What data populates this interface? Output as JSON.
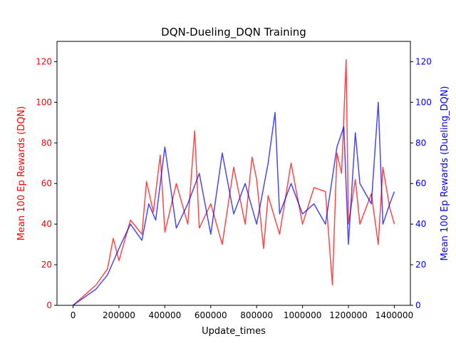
{
  "chart_data": {
    "type": "line",
    "title": "DQN-Dueling_DQN Training",
    "xlabel": "Update_times",
    "ylabel_left": "Mean 100 Ep Rewards (DQN)",
    "ylabel_right": "Mean 100 Ep Rewards (Dueling_DQN)",
    "xlim": [
      -70000,
      1470000
    ],
    "ylim": [
      0,
      130
    ],
    "x_ticks": [
      0,
      200000,
      400000,
      600000,
      800000,
      1000000,
      1200000,
      1400000
    ],
    "x_tick_labels": [
      "0",
      "200000",
      "400000",
      "600000",
      "800000",
      "1000000",
      "1200000",
      "1400000"
    ],
    "y_ticks": [
      0,
      20,
      40,
      60,
      80,
      100,
      120
    ],
    "y_tick_labels": [
      "0",
      "20",
      "40",
      "60",
      "80",
      "100",
      "120"
    ],
    "grid": false,
    "series": [
      {
        "axis": "left",
        "color": "#ff0000",
        "x": [
          0,
          50000,
          100000,
          150000,
          175000,
          200000,
          250000,
          300000,
          320000,
          350000,
          380000,
          400000,
          450000,
          500000,
          530000,
          550000,
          600000,
          650000,
          700000,
          750000,
          780000,
          800000,
          830000,
          850000,
          900000,
          950000,
          1000000,
          1050000,
          1100000,
          1130000,
          1150000,
          1170000,
          1190000,
          1200000,
          1230000,
          1250000,
          1300000,
          1330000,
          1350000,
          1380000,
          1400000
        ],
        "values": [
          0,
          5,
          10,
          18,
          33,
          22,
          42,
          35,
          61,
          46,
          74,
          36,
          60,
          40,
          86,
          38,
          50,
          30,
          68,
          40,
          73,
          62,
          28,
          54,
          35,
          70,
          40,
          58,
          56,
          10,
          75,
          65,
          121,
          40,
          62,
          40,
          55,
          30,
          68,
          48,
          40
        ]
      },
      {
        "axis": "right",
        "color": "#0000ff",
        "x": [
          0,
          50000,
          100000,
          150000,
          200000,
          250000,
          300000,
          330000,
          360000,
          400000,
          450000,
          500000,
          550000,
          600000,
          650000,
          700000,
          750000,
          800000,
          850000,
          880000,
          900000,
          950000,
          1000000,
          1050000,
          1100000,
          1150000,
          1180000,
          1200000,
          1230000,
          1250000,
          1300000,
          1330000,
          1350000,
          1380000,
          1400000
        ],
        "values": [
          0,
          4,
          8,
          15,
          28,
          40,
          32,
          50,
          42,
          78,
          38,
          50,
          65,
          35,
          75,
          45,
          60,
          40,
          70,
          95,
          45,
          60,
          45,
          50,
          40,
          78,
          88,
          30,
          85,
          60,
          50,
          100,
          40,
          50,
          56
        ]
      }
    ]
  }
}
